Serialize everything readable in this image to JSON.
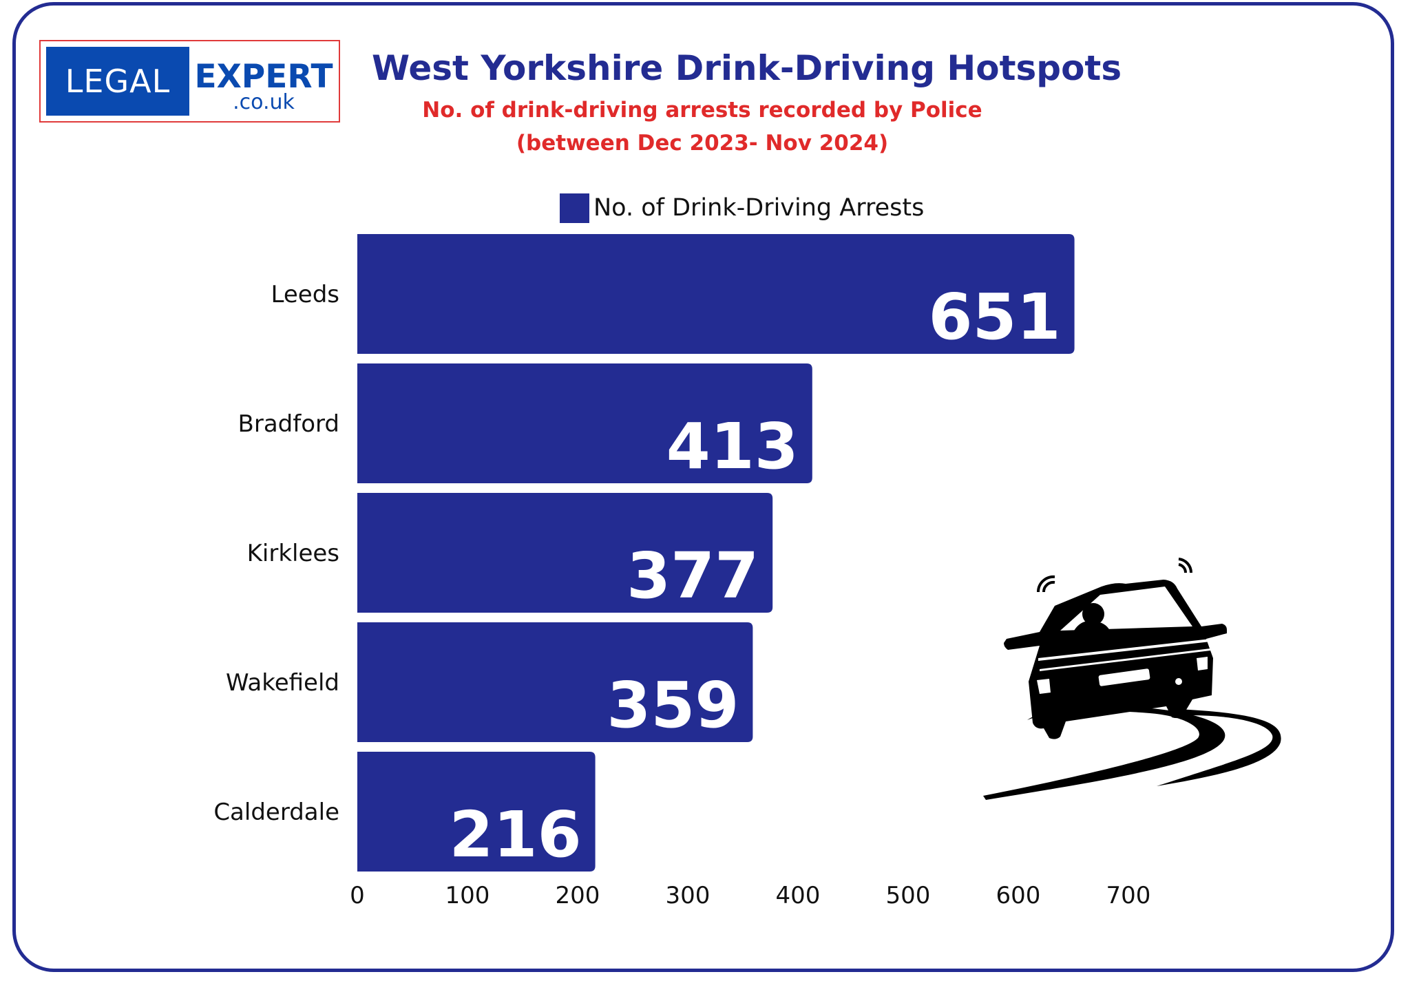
{
  "logo": {
    "legal": "LEGAL",
    "expert": "EXPERT",
    "domain": ".co.uk"
  },
  "colors": {
    "bar": "#232c92",
    "title": "#232c92",
    "subtitle": "#e02a2a",
    "logo_blue": "#0a4ab0",
    "logo_border": "#e03a3a"
  },
  "chart_data": {
    "type": "bar",
    "orientation": "horizontal",
    "title": "West Yorkshire Drink-Driving Hotspots",
    "subtitle_lines": [
      "No. of drink-driving arrests recorded by Police",
      "(between Dec 2023- Nov 2024)"
    ],
    "categories": [
      "Leeds",
      "Bradford",
      "Kirklees",
      "Wakefield",
      "Calderdale"
    ],
    "series": [
      {
        "name": "No. of Drink-Driving Arrests",
        "values": [
          651,
          413,
          377,
          359,
          216
        ]
      }
    ],
    "x_ticks": [
      0,
      100,
      200,
      300,
      400,
      500,
      600,
      700
    ],
    "xlim": [
      0,
      700
    ],
    "grid": false,
    "legend_position": "top"
  },
  "illustration": {
    "icon": "swerving-car-icon"
  }
}
